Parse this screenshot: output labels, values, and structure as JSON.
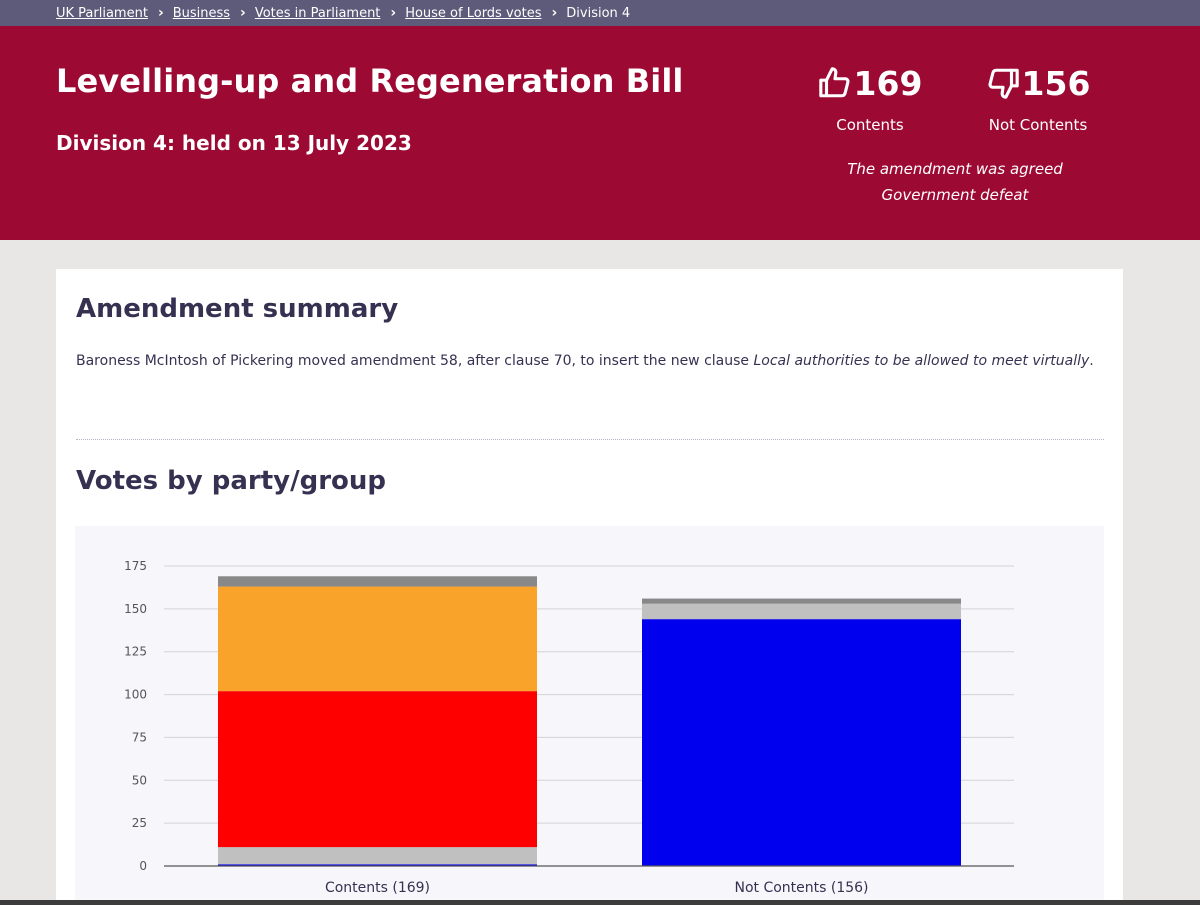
{
  "breadcrumb": {
    "items": [
      "UK Parliament",
      "Business",
      "Votes in Parliament",
      "House of Lords votes"
    ],
    "current": "Division 4"
  },
  "header": {
    "title": "Levelling-up and Regeneration Bill",
    "subtitle": "Division 4: held on 13 July 2023"
  },
  "tally": {
    "contents_count": "169",
    "contents_label": "Contents",
    "not_contents_count": "156",
    "not_contents_label": "Not Contents",
    "outcome_line1": "The amendment was agreed",
    "outcome_line2": "Government defeat",
    "icon_up": "thumbs-up-icon",
    "icon_down": "thumbs-down-icon"
  },
  "summary": {
    "heading": "Amendment summary",
    "text_before": "Baroness McIntosh of Pickering moved amendment 58, after clause 70, to insert the new clause ",
    "text_italic": "Local authorities to be allowed to meet virtually",
    "text_after": "."
  },
  "votes": {
    "heading": "Votes by party/group"
  },
  "chart_data": {
    "type": "bar",
    "stacked": true,
    "categories": [
      "Contents (169)",
      "Not Contents (156)"
    ],
    "series": [
      {
        "color": "#0000ee",
        "values": [
          1,
          144
        ]
      },
      {
        "color": "#c0c0c0",
        "values": [
          10,
          9
        ]
      },
      {
        "color": "#ff0000",
        "values": [
          91,
          0
        ]
      },
      {
        "color": "#f9a32a",
        "values": [
          61,
          0
        ]
      },
      {
        "color": "#888888",
        "values": [
          6,
          3
        ]
      }
    ],
    "yticks": [
      "0",
      "25",
      "50",
      "75",
      "100",
      "125",
      "150",
      "175"
    ],
    "ylim": [
      0,
      175
    ],
    "grid": true
  }
}
